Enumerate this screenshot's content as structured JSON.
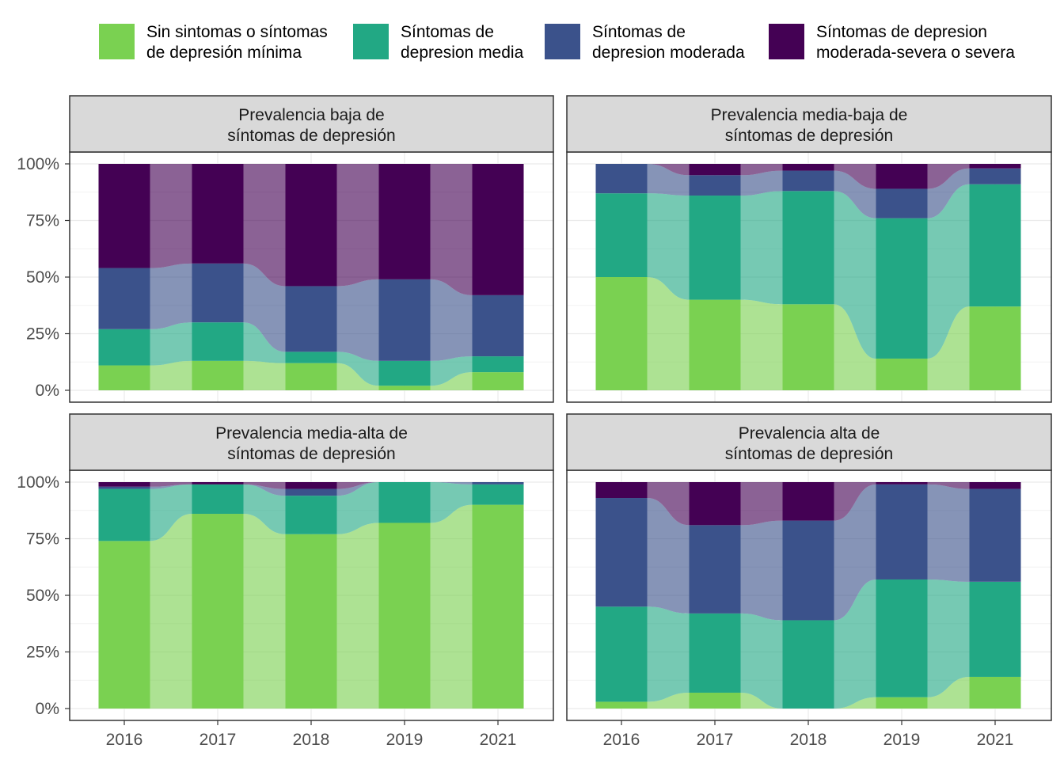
{
  "colors": {
    "minimal": "#7AD151",
    "medium": "#22A884",
    "moderate": "#3B528B",
    "severe": "#440154"
  },
  "legend": [
    {
      "key": "minimal",
      "label_line1": "Sin sintomas o síntomas",
      "label_line2": "de depresión mínima"
    },
    {
      "key": "medium",
      "label_line1": "Síntomas de",
      "label_line2": "depresion media"
    },
    {
      "key": "moderate",
      "label_line1": "Síntomas de",
      "label_line2": "depresion moderada"
    },
    {
      "key": "severe",
      "label_line1": "Síntomas de depresion",
      "label_line2": "moderada-severa o severa"
    }
  ],
  "chart_data": {
    "type": "bar",
    "subtype": "alluvial (stacked proportion bars with flows between years)",
    "categories": [
      "2016",
      "2017",
      "2018",
      "2019",
      "2021"
    ],
    "ylim": [
      0,
      1
    ],
    "yticks": [
      "0%",
      "25%",
      "50%",
      "75%",
      "100%"
    ],
    "grid": true,
    "legend_position": "top",
    "panels": [
      {
        "title_line1": "Prevalencia baja de",
        "title_line2": "síntomas de depresión",
        "series": [
          {
            "key": "minimal",
            "values": [
              0.11,
              0.13,
              0.12,
              0.02,
              0.08
            ]
          },
          {
            "key": "medium",
            "values": [
              0.16,
              0.17,
              0.05,
              0.11,
              0.07
            ]
          },
          {
            "key": "moderate",
            "values": [
              0.27,
              0.26,
              0.29,
              0.36,
              0.27
            ]
          },
          {
            "key": "severe",
            "values": [
              0.46,
              0.44,
              0.54,
              0.51,
              0.58
            ]
          }
        ]
      },
      {
        "title_line1": "Prevalencia media-baja de",
        "title_line2": "síntomas de depresión",
        "series": [
          {
            "key": "minimal",
            "values": [
              0.5,
              0.4,
              0.38,
              0.14,
              0.37
            ]
          },
          {
            "key": "medium",
            "values": [
              0.37,
              0.46,
              0.5,
              0.62,
              0.54
            ]
          },
          {
            "key": "moderate",
            "values": [
              0.13,
              0.09,
              0.09,
              0.13,
              0.07
            ]
          },
          {
            "key": "severe",
            "values": [
              0.0,
              0.05,
              0.03,
              0.11,
              0.02
            ]
          }
        ]
      },
      {
        "title_line1": "Prevalencia media-alta de",
        "title_line2": "síntomas de depresión",
        "series": [
          {
            "key": "minimal",
            "values": [
              0.74,
              0.86,
              0.77,
              0.82,
              0.9
            ]
          },
          {
            "key": "medium",
            "values": [
              0.23,
              0.13,
              0.17,
              0.18,
              0.09
            ]
          },
          {
            "key": "moderate",
            "values": [
              0.01,
              0.0,
              0.03,
              0.0,
              0.01
            ]
          },
          {
            "key": "severe",
            "values": [
              0.02,
              0.01,
              0.03,
              0.0,
              0.0
            ]
          }
        ]
      },
      {
        "title_line1": "Prevalencia alta de",
        "title_line2": "síntomas de depresión",
        "series": [
          {
            "key": "minimal",
            "values": [
              0.03,
              0.07,
              0.0,
              0.05,
              0.14
            ]
          },
          {
            "key": "medium",
            "values": [
              0.42,
              0.35,
              0.39,
              0.52,
              0.42
            ]
          },
          {
            "key": "moderate",
            "values": [
              0.48,
              0.39,
              0.44,
              0.42,
              0.41
            ]
          },
          {
            "key": "severe",
            "values": [
              0.07,
              0.19,
              0.17,
              0.01,
              0.03
            ]
          }
        ]
      }
    ]
  }
}
